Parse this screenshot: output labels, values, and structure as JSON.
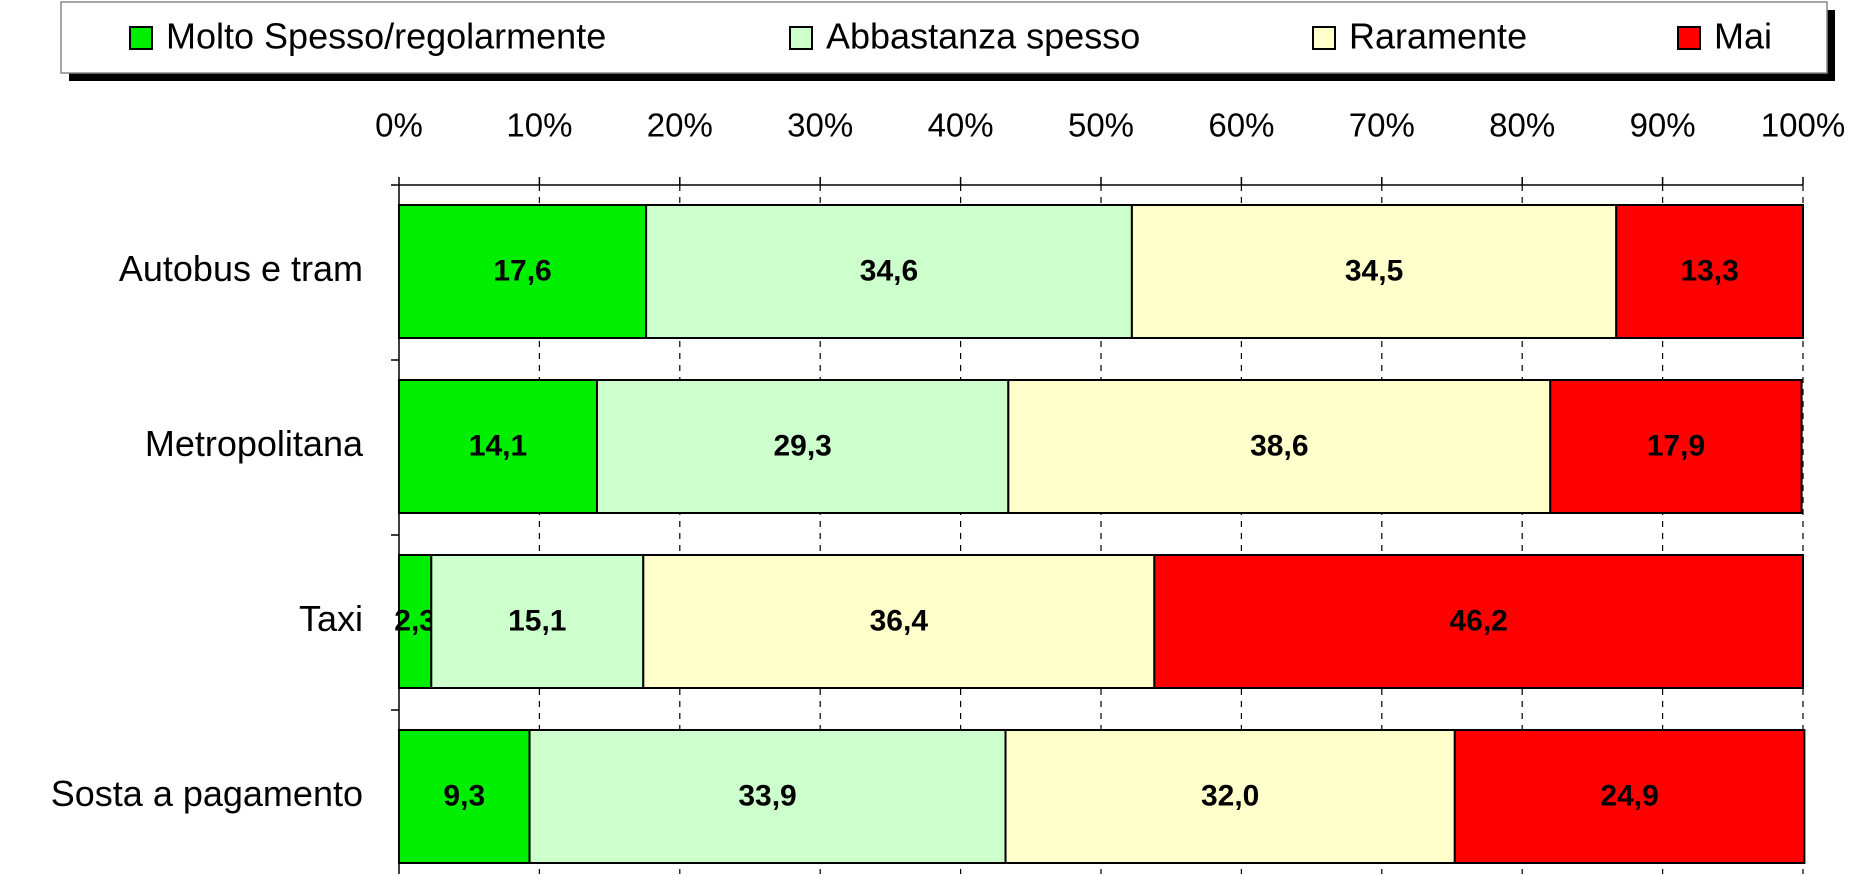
{
  "chart_data": {
    "type": "stacked_bar_horizontal",
    "categories": [
      "Autobus e tram",
      "Metropolitana",
      "Taxi",
      "Sosta a pagamento"
    ],
    "series": [
      {
        "name": "Molto Spesso/regolarmente",
        "color": "#00ee00",
        "values": [
          17.6,
          14.1,
          2.3,
          9.3
        ],
        "value_labels": [
          "17,6",
          "14,1",
          "2,3",
          "9,3"
        ]
      },
      {
        "name": "Abbastanza spesso",
        "color": "#ccffcc",
        "values": [
          34.6,
          29.3,
          15.1,
          33.9
        ],
        "value_labels": [
          "34,6",
          "29,3",
          "15,1",
          "33,9"
        ]
      },
      {
        "name": "Raramente",
        "color": "#ffffcc",
        "values": [
          34.5,
          38.6,
          36.4,
          32.0
        ],
        "value_labels": [
          "34,5",
          "38,6",
          "36,4",
          "32,0"
        ]
      },
      {
        "name": "Mai",
        "color": "#ff0000",
        "values": [
          13.3,
          17.9,
          46.2,
          24.9
        ],
        "value_labels": [
          "13,3",
          "17,9",
          "46,2",
          "24,9"
        ]
      }
    ],
    "xlim": [
      0,
      100
    ],
    "xticks": [
      {
        "value": 0,
        "label": "0%"
      },
      {
        "value": 10,
        "label": "10%"
      },
      {
        "value": 20,
        "label": "20%"
      },
      {
        "value": 30,
        "label": "30%"
      },
      {
        "value": 40,
        "label": "40%"
      },
      {
        "value": 50,
        "label": "50%"
      },
      {
        "value": 60,
        "label": "60%"
      },
      {
        "value": 70,
        "label": "70%"
      },
      {
        "value": 80,
        "label": "80%"
      },
      {
        "value": 90,
        "label": "90%"
      },
      {
        "value": 100,
        "label": "100%"
      }
    ],
    "grid": true,
    "legend": "top"
  }
}
